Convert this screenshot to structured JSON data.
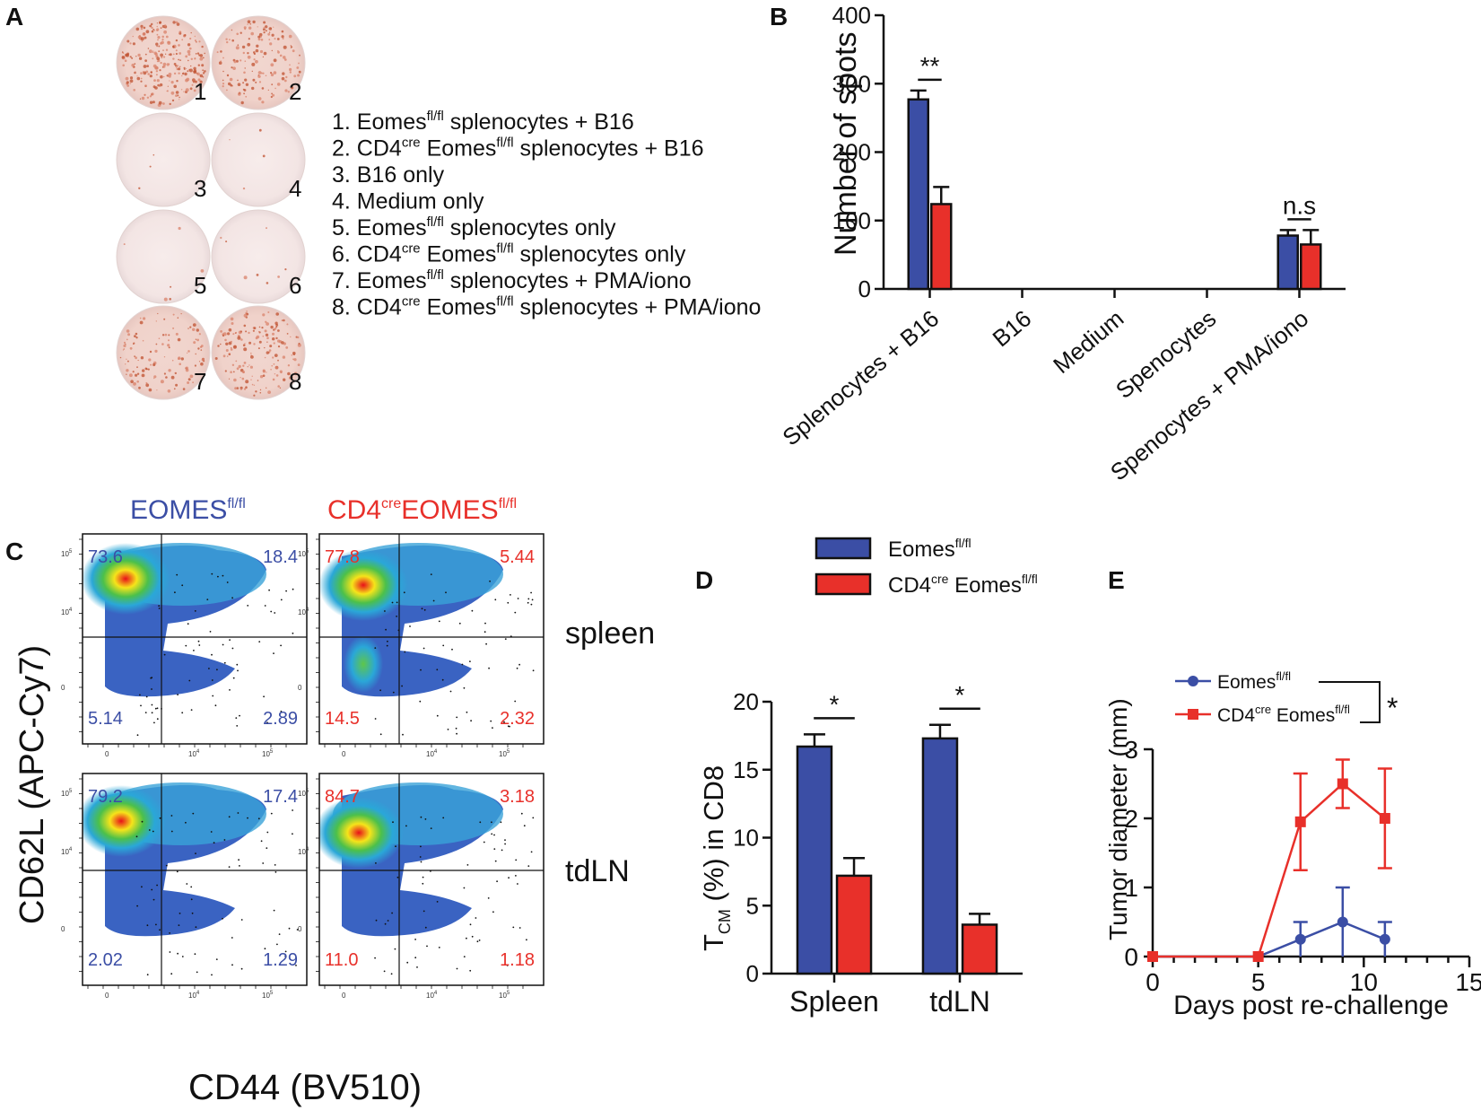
{
  "panel_labels": {
    "a": "A",
    "b": "B",
    "c": "C",
    "d": "D",
    "e": "E"
  },
  "panel_a": {
    "well_labels": [
      "1",
      "2",
      "3",
      "4",
      "5",
      "6",
      "7",
      "8"
    ],
    "legend_items": [
      {
        "num": "1.",
        "pre": "Eomes",
        "pre_sup": "fl/fl",
        "mid": "",
        "mid_sup": "",
        "post": " splenocytes + B16"
      },
      {
        "num": "2.",
        "pre": "CD4",
        "pre_sup": "cre",
        "mid": " Eomes",
        "mid_sup": "fl/fl",
        "post": " splenocytes + B16"
      },
      {
        "num": "3.",
        "pre": "B16 only",
        "pre_sup": "",
        "mid": "",
        "mid_sup": "",
        "post": ""
      },
      {
        "num": "4.",
        "pre": "Medium only",
        "pre_sup": "",
        "mid": "",
        "mid_sup": "",
        "post": ""
      },
      {
        "num": "5.",
        "pre": "Eomes",
        "pre_sup": "fl/fl",
        "mid": "",
        "mid_sup": "",
        "post": " splenocytes only"
      },
      {
        "num": "6.",
        "pre": "CD4",
        "pre_sup": "cre",
        "mid": " Eomes",
        "mid_sup": "fl/fl",
        "post": " splenocytes only"
      },
      {
        "num": "7.",
        "pre": "Eomes",
        "pre_sup": "fl/fl",
        "mid": "",
        "mid_sup": "",
        "post": " splenocytes + PMA/iono"
      },
      {
        "num": "8.",
        "pre": "CD4",
        "pre_sup": "cre",
        "mid": " Eomes",
        "mid_sup": "fl/fl",
        "post": " splenocytes + PMA/iono"
      }
    ]
  },
  "panel_c": {
    "col_titles": {
      "left": {
        "main": "EOMES",
        "sup": "fl/fl"
      },
      "right": {
        "pre": "CD4",
        "pre_sup": "cre",
        "main": "EOMES",
        "sup": "fl/fl"
      }
    },
    "row_labels": [
      "spleen",
      "tdLN"
    ],
    "ylabel": "CD62L (APC-Cy7)",
    "xlabel": "CD44 (BV510)",
    "axis_ticks_x": [
      "0",
      "10",
      "10"
    ],
    "axis_ticks_x_exp": [
      "",
      "4",
      "5"
    ],
    "axis_ticks_y": [
      "0",
      "10",
      "10"
    ],
    "axis_ticks_y_exp": [
      "",
      "4",
      "5"
    ],
    "plots": [
      {
        "tl": "73.6",
        "tr": "18.4",
        "bl": "5.14",
        "br": "2.89",
        "color": "#3b4ea5"
      },
      {
        "tl": "77.8",
        "tr": "5.44",
        "bl": "14.5",
        "br": "2.32",
        "color": "#e8302a"
      },
      {
        "tl": "79.2",
        "tr": "17.4",
        "bl": "2.02",
        "br": "1.29",
        "color": "#3b4ea5"
      },
      {
        "tl": "84.7",
        "tr": "3.18",
        "bl": "11.0",
        "br": "1.18",
        "color": "#e8302a"
      }
    ]
  },
  "chart_data": [
    {
      "id": "B",
      "type": "bar",
      "title": "",
      "xlabel": "",
      "ylabel": "Number of spots",
      "ylim": [
        0,
        400
      ],
      "yticks": [
        "0",
        "100",
        "200",
        "300",
        "400"
      ],
      "categories": [
        "Splenocytes + B16",
        "B16",
        "Medium",
        "Spenocytes",
        "Spenocytes + PMA/iono"
      ],
      "series": [
        {
          "name": "Eomes fl/fl",
          "color": "#3b4ea5",
          "values": [
            277,
            0,
            0,
            0,
            78
          ],
          "errors": [
            13,
            0,
            0,
            0,
            8
          ]
        },
        {
          "name": "CD4cre Eomes fl/fl",
          "color": "#e8302a",
          "values": [
            124,
            0,
            0,
            0,
            65
          ],
          "errors": [
            25,
            0,
            0,
            0,
            21
          ]
        }
      ],
      "annotations": [
        {
          "text": "**",
          "category": 0
        },
        {
          "text": "n.s",
          "category": 4
        }
      ]
    },
    {
      "id": "D",
      "type": "bar",
      "title": "",
      "xlabel": "",
      "ylabel": {
        "pre": "T",
        "sub": "CM",
        "post": " (%) in CD8"
      },
      "ylim": [
        0,
        20
      ],
      "yticks": [
        "0",
        "5",
        "10",
        "15",
        "20"
      ],
      "categories": [
        "Spleen",
        "tdLN"
      ],
      "legend": [
        {
          "main": "Eomes",
          "sup": "fl/fl",
          "pre": "",
          "pre_sup": ""
        },
        {
          "pre": "CD4",
          "pre_sup": "cre",
          "main": " Eomes",
          "sup": "fl/fl"
        }
      ],
      "series": [
        {
          "name": "Eomes fl/fl",
          "color": "#3b4ea5",
          "values": [
            16.7,
            17.3
          ],
          "errors": [
            0.9,
            1.0
          ]
        },
        {
          "name": "CD4cre Eomes fl/fl",
          "color": "#e8302a",
          "values": [
            7.2,
            3.6
          ],
          "errors": [
            1.3,
            0.8
          ]
        }
      ],
      "annotations": [
        {
          "text": "*",
          "category": 0
        },
        {
          "text": "*",
          "category": 1
        }
      ]
    },
    {
      "id": "E",
      "type": "line",
      "title": "",
      "xlabel": "Days post re-challenge",
      "ylabel": "Tumor diameter (mm)",
      "xlim": [
        0,
        15
      ],
      "ylim": [
        0,
        3
      ],
      "xticks": [
        "0",
        "5",
        "10",
        "15"
      ],
      "yticks": [
        "0",
        "1",
        "2",
        "3"
      ],
      "legend": [
        {
          "main": "Eomes",
          "sup": "fl/fl",
          "pre": "",
          "pre_sup": ""
        },
        {
          "pre": "CD4",
          "pre_sup": "cre",
          "main": " Eomes",
          "sup": "fl/fl"
        }
      ],
      "series": [
        {
          "name": "Eomes fl/fl",
          "color": "#3b4ea5",
          "marker": "circle",
          "x": [
            0,
            5,
            7,
            9,
            11
          ],
          "y": [
            0,
            0,
            0.25,
            0.5,
            0.25
          ],
          "errors": [
            0,
            0,
            0.25,
            0.5,
            0.25
          ]
        },
        {
          "name": "CD4cre Eomes fl/fl",
          "color": "#e8302a",
          "marker": "square",
          "x": [
            0,
            5,
            7,
            9,
            11
          ],
          "y": [
            0,
            0,
            1.95,
            2.5,
            2.0
          ],
          "errors": [
            0,
            0,
            0.7,
            0.35,
            0.72
          ]
        }
      ],
      "annotations": [
        {
          "text": "*"
        }
      ]
    }
  ]
}
